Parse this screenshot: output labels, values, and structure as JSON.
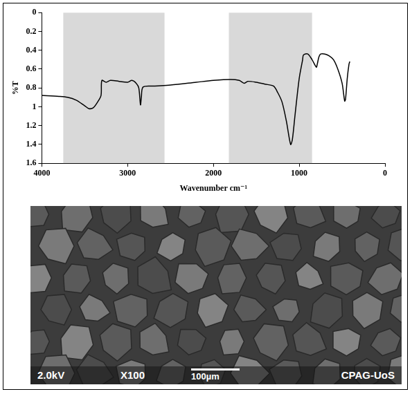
{
  "chart_data": {
    "type": "line",
    "x_label": "Wavenumber cm⁻¹",
    "y_label": "%T",
    "xlim": [
      4000,
      0
    ],
    "xticks": [
      4000,
      3000,
      2000,
      1000,
      0
    ],
    "ylim": [
      1.6,
      0
    ],
    "yticks": [
      0,
      0.2,
      0.4,
      0.6,
      0.8,
      1,
      1.2,
      1.4,
      1.6
    ],
    "grid": false,
    "color": "#000000",
    "bands": [
      [
        3750,
        2570
      ],
      [
        1820,
        850
      ]
    ],
    "x": [
      4000,
      3800,
      3700,
      3600,
      3500,
      3450,
      3400,
      3350,
      3310,
      3300,
      3250,
      3200,
      3100,
      3000,
      2950,
      2900,
      2870,
      2850,
      2840,
      2820,
      2700,
      2500,
      2200,
      2000,
      1800,
      1700,
      1640,
      1600,
      1500,
      1400,
      1300,
      1250,
      1200,
      1150,
      1100,
      1080,
      1050,
      1000,
      960,
      950,
      900,
      850,
      800,
      790,
      770,
      750,
      700,
      650,
      600,
      550,
      500,
      470,
      460,
      440,
      420,
      410
    ],
    "values": [
      0.88,
      0.89,
      0.9,
      0.93,
      0.99,
      1.02,
      1.01,
      0.95,
      0.88,
      0.72,
      0.74,
      0.72,
      0.73,
      0.74,
      0.72,
      0.75,
      0.8,
      0.98,
      0.9,
      0.79,
      0.78,
      0.77,
      0.74,
      0.72,
      0.71,
      0.72,
      0.75,
      0.73,
      0.74,
      0.76,
      0.78,
      0.85,
      0.95,
      1.15,
      1.4,
      1.35,
      1.1,
      0.7,
      0.5,
      0.45,
      0.44,
      0.5,
      0.58,
      0.55,
      0.47,
      0.44,
      0.44,
      0.46,
      0.5,
      0.6,
      0.75,
      0.94,
      0.92,
      0.7,
      0.55,
      0.52
    ]
  },
  "micrograph": {
    "voltage": "2.0kV",
    "magnification": "X100",
    "scale_bar": "100µm",
    "credit": "CPAG-UoS"
  }
}
